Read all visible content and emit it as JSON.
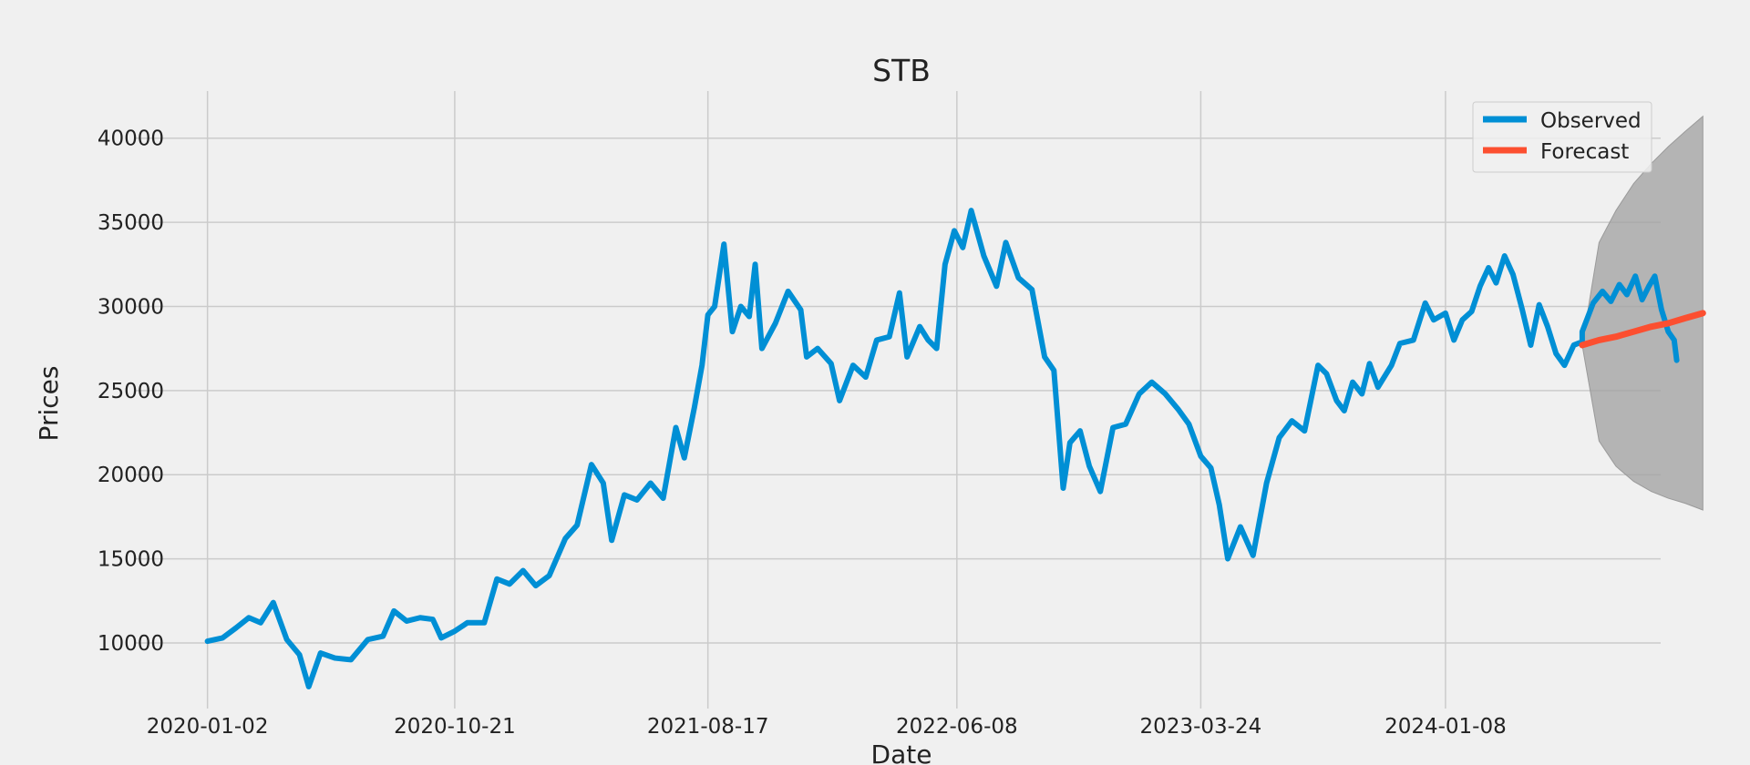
{
  "chart_data": {
    "type": "line",
    "title": "STB",
    "xlabel": "Date",
    "ylabel": "Prices",
    "x_ticks": [
      "2020-01-02",
      "2020-10-21",
      "2021-08-17",
      "2022-06-08",
      "2023-03-24",
      "2024-01-08"
    ],
    "y_ticks": [
      10000,
      15000,
      20000,
      25000,
      30000,
      35000,
      40000
    ],
    "xlim": [
      "2019-10-08",
      "2024-09-19"
    ],
    "ylim": [
      6100,
      42800
    ],
    "grid": true,
    "legend_position": "top-right",
    "colors": {
      "observed": "#008fd5",
      "forecast": "#fc4f30",
      "confidence_band": "#a0a0a0",
      "background": "#f0f0f0",
      "grid": "#cbcbcb"
    },
    "series": [
      {
        "name": "Observed",
        "points": [
          [
            "2020-01-02",
            10100
          ],
          [
            "2020-01-20",
            10300
          ],
          [
            "2020-02-05",
            10900
          ],
          [
            "2020-02-20",
            11500
          ],
          [
            "2020-03-05",
            11200
          ],
          [
            "2020-03-20",
            12400
          ],
          [
            "2020-04-05",
            10200
          ],
          [
            "2020-04-20",
            9300
          ],
          [
            "2020-05-01",
            7400
          ],
          [
            "2020-05-15",
            9400
          ],
          [
            "2020-06-01",
            9100
          ],
          [
            "2020-06-20",
            9000
          ],
          [
            "2020-07-10",
            10200
          ],
          [
            "2020-07-28",
            10400
          ],
          [
            "2020-08-10",
            11900
          ],
          [
            "2020-08-25",
            11300
          ],
          [
            "2020-09-10",
            11500
          ],
          [
            "2020-09-25",
            11400
          ],
          [
            "2020-10-05",
            10300
          ],
          [
            "2020-10-21",
            10700
          ],
          [
            "2020-11-05",
            11200
          ],
          [
            "2020-11-25",
            11200
          ],
          [
            "2020-12-10",
            13800
          ],
          [
            "2020-12-25",
            13500
          ],
          [
            "2021-01-10",
            14300
          ],
          [
            "2021-01-25",
            13400
          ],
          [
            "2021-02-10",
            14000
          ],
          [
            "2021-03-01",
            16200
          ],
          [
            "2021-03-15",
            17000
          ],
          [
            "2021-04-01",
            20600
          ],
          [
            "2021-04-15",
            19500
          ],
          [
            "2021-04-25",
            16100
          ],
          [
            "2021-05-10",
            18800
          ],
          [
            "2021-05-25",
            18500
          ],
          [
            "2021-06-10",
            19500
          ],
          [
            "2021-06-25",
            18600
          ],
          [
            "2021-07-10",
            22800
          ],
          [
            "2021-07-20",
            21000
          ],
          [
            "2021-08-01",
            24000
          ],
          [
            "2021-08-10",
            26500
          ],
          [
            "2021-08-17",
            29500
          ],
          [
            "2021-08-25",
            30000
          ],
          [
            "2021-09-05",
            33700
          ],
          [
            "2021-09-15",
            28500
          ],
          [
            "2021-09-25",
            30000
          ],
          [
            "2021-10-05",
            29400
          ],
          [
            "2021-10-12",
            32500
          ],
          [
            "2021-10-20",
            27500
          ],
          [
            "2021-11-05",
            29000
          ],
          [
            "2021-11-20",
            30900
          ],
          [
            "2021-12-05",
            29800
          ],
          [
            "2021-12-12",
            27000
          ],
          [
            "2021-12-25",
            27500
          ],
          [
            "2022-01-10",
            26600
          ],
          [
            "2022-01-20",
            24400
          ],
          [
            "2022-02-05",
            26500
          ],
          [
            "2022-02-20",
            25800
          ],
          [
            "2022-03-05",
            28000
          ],
          [
            "2022-03-20",
            28200
          ],
          [
            "2022-04-01",
            30800
          ],
          [
            "2022-04-10",
            27000
          ],
          [
            "2022-04-25",
            28800
          ],
          [
            "2022-05-05",
            28000
          ],
          [
            "2022-05-15",
            27500
          ],
          [
            "2022-05-25",
            32500
          ],
          [
            "2022-06-05",
            34500
          ],
          [
            "2022-06-15",
            33500
          ],
          [
            "2022-06-25",
            35700
          ],
          [
            "2022-07-10",
            33000
          ],
          [
            "2022-07-25",
            31200
          ],
          [
            "2022-08-05",
            33800
          ],
          [
            "2022-08-20",
            31700
          ],
          [
            "2022-09-05",
            31000
          ],
          [
            "2022-09-20",
            27000
          ],
          [
            "2022-10-01",
            26200
          ],
          [
            "2022-10-12",
            19200
          ],
          [
            "2022-10-20",
            21900
          ],
          [
            "2022-11-01",
            22600
          ],
          [
            "2022-11-12",
            20500
          ],
          [
            "2022-11-25",
            19000
          ],
          [
            "2022-12-10",
            22800
          ],
          [
            "2022-12-25",
            23000
          ],
          [
            "2023-01-10",
            24800
          ],
          [
            "2023-01-25",
            25500
          ],
          [
            "2023-02-10",
            24800
          ],
          [
            "2023-02-25",
            23900
          ],
          [
            "2023-03-10",
            23000
          ],
          [
            "2023-03-24",
            21100
          ],
          [
            "2023-04-05",
            20400
          ],
          [
            "2023-04-15",
            18200
          ],
          [
            "2023-04-25",
            15000
          ],
          [
            "2023-05-10",
            16900
          ],
          [
            "2023-05-25",
            15200
          ],
          [
            "2023-06-10",
            19500
          ],
          [
            "2023-06-25",
            22200
          ],
          [
            "2023-07-10",
            23200
          ],
          [
            "2023-07-25",
            22600
          ],
          [
            "2023-08-10",
            26500
          ],
          [
            "2023-08-20",
            26000
          ],
          [
            "2023-09-01",
            24400
          ],
          [
            "2023-09-10",
            23800
          ],
          [
            "2023-09-20",
            25500
          ],
          [
            "2023-10-01",
            24800
          ],
          [
            "2023-10-10",
            26600
          ],
          [
            "2023-10-20",
            25200
          ],
          [
            "2023-11-05",
            26500
          ],
          [
            "2023-11-15",
            27800
          ],
          [
            "2023-12-01",
            28000
          ],
          [
            "2023-12-15",
            30200
          ],
          [
            "2023-12-25",
            29200
          ],
          [
            "2024-01-08",
            29600
          ],
          [
            "2024-01-18",
            28000
          ],
          [
            "2024-01-28",
            29200
          ],
          [
            "2024-02-08",
            29700
          ],
          [
            "2024-02-18",
            31200
          ],
          [
            "2024-02-28",
            32300
          ],
          [
            "2024-03-08",
            31400
          ],
          [
            "2024-03-18",
            33000
          ],
          [
            "2024-03-28",
            31900
          ],
          [
            "2024-04-08",
            29800
          ],
          [
            "2024-04-18",
            27700
          ],
          [
            "2024-04-28",
            30100
          ],
          [
            "2024-05-08",
            28800
          ],
          [
            "2024-05-18",
            27200
          ],
          [
            "2024-05-28",
            26500
          ],
          [
            "2024-06-08",
            27700
          ],
          [
            "2024-06-18",
            27900
          ]
        ]
      },
      {
        "name": "Forecast",
        "points": [
          [
            "2024-06-18",
            27700
          ],
          [
            "2024-07-08",
            28000
          ],
          [
            "2024-07-28",
            28200
          ],
          [
            "2024-08-18",
            28500
          ],
          [
            "2024-09-08",
            28800
          ],
          [
            "2024-09-28",
            29000
          ],
          [
            "2024-10-18",
            29300
          ],
          [
            "2024-11-08",
            29600
          ]
        ]
      }
    ],
    "observed_continuation": [
      [
        "2024-06-18",
        28500
      ],
      [
        "2024-07-01",
        30200
      ],
      [
        "2024-07-12",
        30900
      ],
      [
        "2024-07-22",
        30300
      ],
      [
        "2024-08-01",
        31300
      ],
      [
        "2024-08-10",
        30700
      ],
      [
        "2024-08-20",
        31800
      ],
      [
        "2024-08-28",
        30400
      ],
      [
        "2024-09-05",
        31200
      ],
      [
        "2024-09-12",
        31800
      ],
      [
        "2024-09-20",
        29800
      ],
      [
        "2024-09-28",
        28500
      ],
      [
        "2024-10-05",
        28000
      ],
      [
        "2024-10-08",
        26800
      ]
    ],
    "confidence_band": {
      "x": [
        "2024-06-18",
        "2024-07-08",
        "2024-07-28",
        "2024-08-18",
        "2024-09-08",
        "2024-09-28",
        "2024-10-18",
        "2024-11-08"
      ],
      "upper": [
        27700,
        33800,
        35700,
        37300,
        38500,
        39500,
        40400,
        41300
      ],
      "lower": [
        27700,
        22000,
        20500,
        19600,
        19000,
        18600,
        18300,
        17900
      ]
    }
  }
}
